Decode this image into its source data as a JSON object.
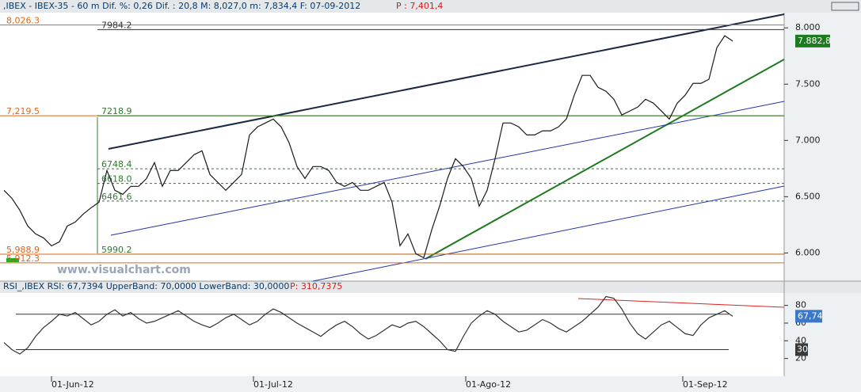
{
  "chart_data": [
    {
      "type": "line",
      "header": ",IBEX - IBEX-35 -  60 m Dif. %: 0,26 Dif. : 20,8 M: 8,027,0 m: 7,834,4 F: 07-09-2012",
      "header_price": "P : 7,401,4",
      "watermark": "www.visualchart.com",
      "series": [
        {
          "name": "IBEX-35",
          "color": "#1b1b1b",
          "values": [
            6557,
            6486,
            6380,
            6240,
            6169,
            6134,
            6064,
            6099,
            6240,
            6275,
            6345,
            6402,
            6451,
            6733,
            6557,
            6521,
            6592,
            6592,
            6662,
            6803,
            6592,
            6733,
            6733,
            6803,
            6873,
            6908,
            6698,
            6627,
            6557,
            6627,
            6698,
            7049,
            7120,
            7155,
            7190,
            7120,
            6979,
            6768,
            6662,
            6768,
            6768,
            6733,
            6627,
            6592,
            6627,
            6557,
            6557,
            6592,
            6627,
            6451,
            6064,
            6169,
            5993,
            5958,
            6204,
            6416,
            6662,
            6838,
            6768,
            6662,
            6416,
            6557,
            6838,
            7155,
            7155,
            7120,
            7049,
            7049,
            7085,
            7085,
            7120,
            7190,
            7402,
            7578,
            7578,
            7472,
            7437,
            7366,
            7226,
            7261,
            7296,
            7366,
            7331,
            7261,
            7190,
            7331,
            7402,
            7507,
            7507,
            7543,
            7824,
            7930,
            7882.8
          ]
        }
      ],
      "last_value_label": "7.882,8",
      "levels": [
        {
          "value": 8026.3,
          "label": "8,026.3",
          "color": "#e0661a"
        },
        {
          "value": 7984.2,
          "label": "7984.2",
          "color": "#333333"
        },
        {
          "value": 7219.5,
          "label": "7,219.5",
          "color": "#e0661a"
        },
        {
          "value": 7218.9,
          "label": "7218.9",
          "color": "#2f7a2f"
        },
        {
          "value": 6748.4,
          "label": "6748.4",
          "color": "#2f7a2f"
        },
        {
          "value": 6618.0,
          "label": "6618.0",
          "color": "#2f7a2f"
        },
        {
          "value": 6461.6,
          "label": "6461.6",
          "color": "#2f7a2f"
        },
        {
          "value": 5990.2,
          "label": "5990.2",
          "color": "#2f7a2f"
        },
        {
          "value": 5988.9,
          "label": "5,988.9",
          "color": "#e0661a"
        },
        {
          "value": 5912.3,
          "label": "5,912.3",
          "color": "#e0661a"
        }
      ],
      "xlim": [
        -0.5,
        98.5
      ],
      "ylim": [
        5750,
        8135
      ],
      "yticks": [
        {
          "value": 6000,
          "label": "6.000"
        },
        {
          "value": 6500,
          "label": "6.500"
        },
        {
          "value": 7000,
          "label": "7.000"
        },
        {
          "value": 7500,
          "label": "7.500"
        },
        {
          "value": 8000,
          "label": "8.000"
        }
      ]
    },
    {
      "type": "line",
      "header": "RSI_,IBEX RSI: 67,7394 UpperBand: 70,0000 LowerBand: 30,0000",
      "header_price": "P: 310,7375",
      "series": [
        {
          "name": "RSI",
          "color": "#333333",
          "values": [
            38,
            30,
            25,
            32,
            45,
            55,
            62,
            70,
            68,
            72,
            65,
            58,
            62,
            70,
            75,
            68,
            72,
            65,
            60,
            62,
            66,
            70,
            74,
            68,
            62,
            58,
            55,
            60,
            66,
            70,
            64,
            58,
            62,
            70,
            76,
            72,
            66,
            60,
            55,
            50,
            45,
            52,
            58,
            62,
            56,
            48,
            42,
            46,
            52,
            58,
            55,
            60,
            62,
            56,
            48,
            40,
            30,
            28,
            45,
            60,
            68,
            74,
            70,
            62,
            56,
            50,
            52,
            58,
            64,
            60,
            54,
            50,
            56,
            62,
            70,
            78,
            90,
            88,
            76,
            60,
            48,
            42,
            50,
            58,
            62,
            55,
            48,
            46,
            58,
            66,
            70,
            74,
            67.74
          ]
        }
      ],
      "last_value_label": "67,74",
      "upper_band": 70,
      "lower_band": 30,
      "xlim": [
        -0.5,
        98.5
      ],
      "ylim": [
        0,
        94
      ],
      "yticks": [
        20,
        40,
        60,
        80
      ],
      "xticks": [
        {
          "value": 6,
          "label": "01-Jun-12"
        },
        {
          "value": 31.5,
          "label": "01-Jul-12"
        },
        {
          "value": 58.3,
          "label": "01-Ago-12"
        },
        {
          "value": 85.7,
          "label": "01-Sep-12"
        }
      ]
    }
  ]
}
